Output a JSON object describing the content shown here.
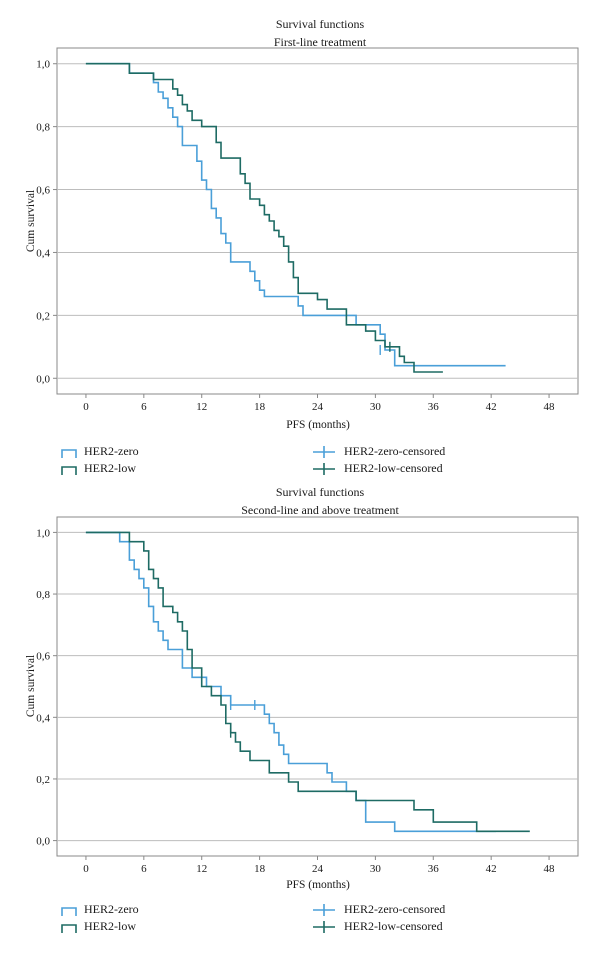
{
  "colors": {
    "zero": "#4a9fd8",
    "low": "#1e6b64",
    "grid": "#bdbdbd",
    "axis": "#888888",
    "text": "#1a1a1a"
  },
  "legend_labels": {
    "zero": "HER2-zero",
    "low": "HER2-low",
    "zero_censored": "HER2-zero-censored",
    "low_censored": "HER2-low-censored"
  },
  "chart_data": [
    {
      "type": "line",
      "subtype": "kaplan-meier step",
      "title": "Survival functions",
      "subtitle": "First-line treatment",
      "xlabel": "PFS (months)",
      "ylabel": "Cum survival",
      "xlim": [
        -3,
        51
      ],
      "ylim": [
        -0.05,
        1.05
      ],
      "x_ticks": [
        0,
        6,
        12,
        18,
        24,
        30,
        36,
        42,
        48
      ],
      "x_tick_labels": [
        "0",
        "6",
        "12",
        "18",
        "24",
        "30",
        "36",
        "42",
        "48"
      ],
      "y_ticks": [
        0.0,
        0.2,
        0.4,
        0.6,
        0.8,
        1.0
      ],
      "y_tick_labels": [
        "0,0",
        "0,2",
        "0,4",
        "0,6",
        "0,8",
        "1,0"
      ],
      "grid": "horizontal",
      "legend_position": "bottom",
      "series": [
        {
          "key": "zero",
          "name": "HER2-zero",
          "x": [
            0,
            2,
            4.5,
            5,
            7,
            7.5,
            8,
            8.5,
            9,
            9.5,
            10,
            11.5,
            12,
            12.5,
            13,
            13.5,
            14,
            14.5,
            15,
            17,
            17.5,
            18,
            18.5,
            22,
            22.5,
            28,
            30.5,
            31,
            32,
            43.5
          ],
          "y": [
            1.0,
            1.0,
            0.97,
            0.97,
            0.94,
            0.91,
            0.89,
            0.86,
            0.83,
            0.8,
            0.74,
            0.69,
            0.63,
            0.6,
            0.54,
            0.51,
            0.46,
            0.43,
            0.37,
            0.34,
            0.31,
            0.28,
            0.26,
            0.23,
            0.2,
            0.17,
            0.14,
            0.09,
            0.04,
            0.04
          ]
        },
        {
          "key": "low",
          "name": "HER2-low",
          "x": [
            0,
            2,
            4.5,
            5,
            7,
            8,
            9,
            9.5,
            10,
            10.5,
            11,
            11.5,
            12,
            13,
            13.5,
            14,
            15,
            16,
            16.5,
            17,
            18,
            18.5,
            19,
            19.5,
            20,
            20.5,
            21,
            21.5,
            22,
            24,
            25,
            26,
            27,
            28,
            29,
            30,
            31,
            32,
            32.5,
            33,
            34,
            37
          ],
          "y": [
            1.0,
            1.0,
            0.97,
            0.97,
            0.95,
            0.95,
            0.92,
            0.9,
            0.87,
            0.85,
            0.82,
            0.82,
            0.8,
            0.8,
            0.75,
            0.7,
            0.7,
            0.65,
            0.62,
            0.57,
            0.55,
            0.52,
            0.5,
            0.47,
            0.45,
            0.42,
            0.37,
            0.32,
            0.27,
            0.25,
            0.22,
            0.22,
            0.17,
            0.17,
            0.15,
            0.12,
            0.1,
            0.1,
            0.07,
            0.05,
            0.02,
            0.02
          ]
        }
      ],
      "censored": [
        {
          "key": "zero",
          "x": 30.5,
          "y": 0.09
        },
        {
          "key": "low",
          "x": 31.5,
          "y": 0.1
        }
      ]
    },
    {
      "type": "line",
      "subtype": "kaplan-meier step",
      "title": "Survival functions",
      "subtitle": "Second-line and above treatment",
      "xlabel": "PFS (months)",
      "ylabel": "Cum survival",
      "xlim": [
        -3,
        51
      ],
      "ylim": [
        -0.05,
        1.05
      ],
      "x_ticks": [
        0,
        6,
        12,
        18,
        24,
        30,
        36,
        42,
        48
      ],
      "x_tick_labels": [
        "0",
        "6",
        "12",
        "18",
        "24",
        "30",
        "36",
        "42",
        "48"
      ],
      "y_ticks": [
        0.0,
        0.2,
        0.4,
        0.6,
        0.8,
        1.0
      ],
      "y_tick_labels": [
        "0,0",
        "0,2",
        "0,4",
        "0,6",
        "0,8",
        "1,0"
      ],
      "grid": "horizontal",
      "legend_position": "bottom",
      "series": [
        {
          "key": "zero",
          "name": "HER2-zero",
          "x": [
            0,
            3,
            3.5,
            4.5,
            5,
            5.5,
            6,
            6.5,
            7,
            7.5,
            8,
            8.5,
            9,
            10,
            11,
            12,
            12.5,
            13,
            14,
            15,
            17,
            18.5,
            19,
            19.5,
            20,
            20.5,
            21,
            25,
            25.5,
            26,
            27,
            28,
            29,
            32,
            33,
            42.5
          ],
          "y": [
            1.0,
            1.0,
            0.97,
            0.91,
            0.88,
            0.85,
            0.82,
            0.76,
            0.71,
            0.68,
            0.65,
            0.62,
            0.62,
            0.56,
            0.53,
            0.53,
            0.5,
            0.5,
            0.47,
            0.44,
            0.44,
            0.41,
            0.38,
            0.35,
            0.31,
            0.28,
            0.25,
            0.22,
            0.19,
            0.19,
            0.16,
            0.13,
            0.06,
            0.03,
            0.03,
            0.03
          ]
        },
        {
          "key": "low",
          "name": "HER2-low",
          "x": [
            0,
            2,
            4.5,
            6,
            6.5,
            7,
            7.5,
            8,
            9,
            9.5,
            10,
            10.5,
            11,
            12,
            13,
            14,
            14.5,
            15,
            15.5,
            16,
            17,
            19,
            20,
            21,
            22,
            28,
            34,
            36,
            40.5,
            46
          ],
          "y": [
            1.0,
            1.0,
            0.97,
            0.94,
            0.88,
            0.85,
            0.82,
            0.76,
            0.74,
            0.71,
            0.68,
            0.62,
            0.56,
            0.5,
            0.47,
            0.44,
            0.38,
            0.35,
            0.32,
            0.29,
            0.26,
            0.22,
            0.22,
            0.19,
            0.16,
            0.13,
            0.1,
            0.06,
            0.03,
            0.03
          ]
        }
      ],
      "censored": [
        {
          "key": "zero",
          "x": 15,
          "y": 0.44
        },
        {
          "key": "zero",
          "x": 17.5,
          "y": 0.44
        },
        {
          "key": "low",
          "x": 15,
          "y": 0.35
        }
      ]
    }
  ]
}
